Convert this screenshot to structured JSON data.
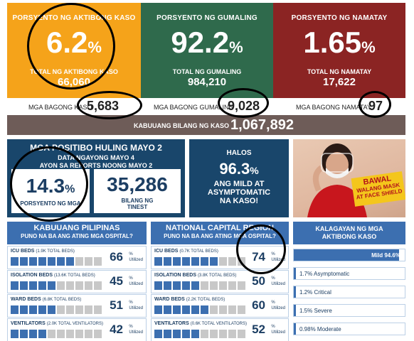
{
  "top": {
    "active": {
      "label": "PORSYENTO NG AKTIBONG KASO",
      "percent": "6.2",
      "pct_sign": "%",
      "total_label": "TOTAL NG AKTIBONG KASO",
      "total": "66,060",
      "new_label": "MGA BAGONG KASO",
      "new_value": "5,683",
      "color": "#f5a31a"
    },
    "recovered": {
      "label": "PORSYENTO NG GUMALING",
      "percent": "92.2",
      "pct_sign": "%",
      "total_label": "TOTAL NG GUMALING",
      "total": "984,210",
      "new_label": "MGA BAGONG GUMALING",
      "new_value": "9,028",
      "color": "#2f6a4c"
    },
    "deaths": {
      "label": "PORSYENTO NG NAMATAY",
      "percent": "1.65",
      "pct_sign": "%",
      "total_label": "TOTAL NG NAMATAY",
      "total": "17,622",
      "new_label": "MGA BAGONG NAMATAY",
      "new_value": "97",
      "color": "#8b2423"
    },
    "total_cases": {
      "label": "KABUUANG BILANG NG KASO",
      "value": "1,067,892"
    }
  },
  "positivity": {
    "title": "MGA POSITIBO HULING MAYO 2",
    "sub1": "DATA NGAYONG MAYO 4",
    "sub2": "AYON SA REPORTS NOONG MAYO 2",
    "rate": "14.3",
    "rate_sign": "%",
    "rate_label": "PORSYENTO NG MGA",
    "tested": "35,286",
    "tested_label1": "BILANG NG",
    "tested_label2": "TINEST"
  },
  "mild": {
    "line1": "HALOS",
    "value": "96.3",
    "sign": "%",
    "line2": "ANG MILD AT",
    "line3": "ASYMPTOMATIC",
    "line4": "NA KASO!"
  },
  "poster": {
    "line1": "BAWAL",
    "line2": "WALANG MASK",
    "line3": "AT FACE SHIELD"
  },
  "ph": {
    "title": "KABUUANG PILIPINAS",
    "subtitle": "PUNO NA BA ANG ATING MGA OSPITAL?",
    "rows": [
      {
        "label": "ICU BEDS",
        "detail": "(1.9K TOTAL BEDS)",
        "value": "66",
        "fraction": 0.66
      },
      {
        "label": "ISOLATION BEDS",
        "detail": "(13.6K TOTAL BEDS)",
        "value": "45",
        "fraction": 0.45
      },
      {
        "label": "WARD BEDS",
        "detail": "(6.8K TOTAL BEDS)",
        "value": "51",
        "fraction": 0.51
      },
      {
        "label": "VENTILATORS",
        "detail": "(2.0K TOTAL VENTILATORS)",
        "value": "42",
        "fraction": 0.42
      }
    ]
  },
  "ncr": {
    "title": "NATIONAL CAPITAL REGION",
    "subtitle": "PUNO NA BA ANG ATING MGA OSPITAL?",
    "rows": [
      {
        "label": "ICU BEDS",
        "detail": "(0.7K TOTAL BEDS)",
        "value": "74",
        "fraction": 0.74
      },
      {
        "label": "ISOLATION BEDS",
        "detail": "(3.8K TOTAL BEDS)",
        "value": "50",
        "fraction": 0.5
      },
      {
        "label": "WARD BEDS",
        "detail": "(2.2K TOTAL BEDS)",
        "value": "60",
        "fraction": 0.6
      },
      {
        "label": "VENTILATORS",
        "detail": "(0.6K TOTAL VENTILATORS)",
        "value": "52",
        "fraction": 0.52
      }
    ]
  },
  "unit": {
    "pct": "%",
    "word": "Utilized"
  },
  "status": {
    "title1": "KALAGAYAN NG MGA",
    "title2": "AKTIBONG KASO",
    "items": [
      {
        "label": "Mild 94.6%",
        "fraction": 0.946
      },
      {
        "label": "1.7% Asymptomatic",
        "fraction": 0.017
      },
      {
        "label": "1.2% Critical",
        "fraction": 0.012
      },
      {
        "label": "1.5% Severe",
        "fraction": 0.015
      },
      {
        "label": "0.98% Moderate",
        "fraction": 0.0098
      }
    ]
  }
}
